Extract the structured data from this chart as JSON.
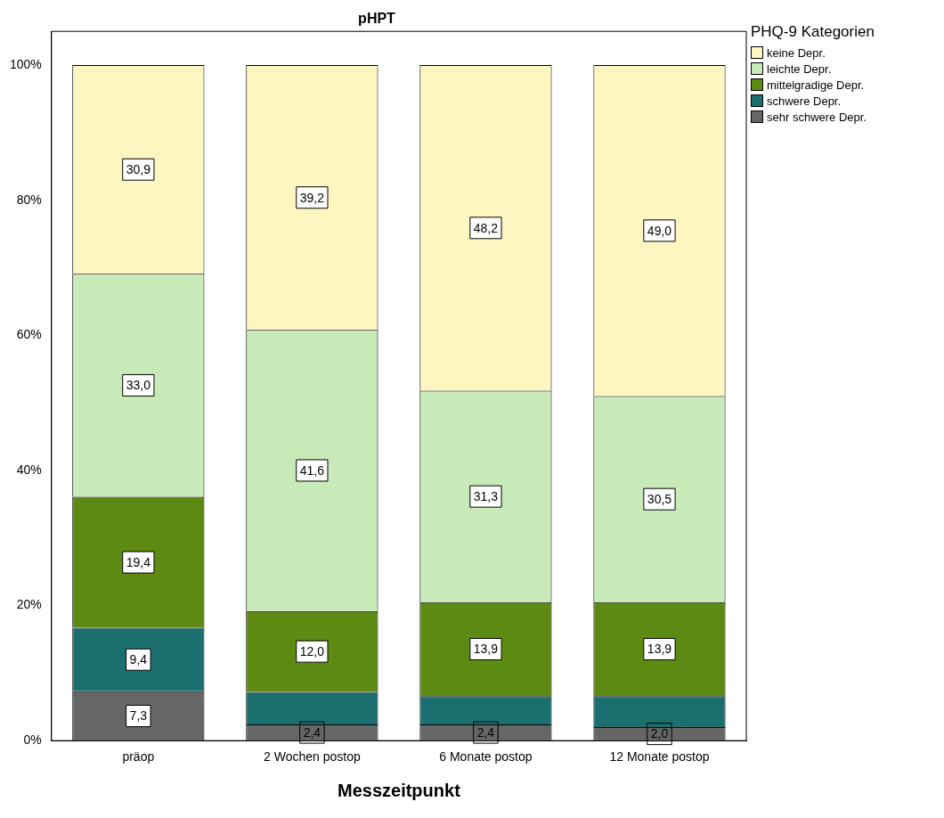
{
  "chart_data": {
    "type": "bar",
    "title": "pHPT",
    "xlabel": "Messzeitpunkt",
    "legend_title": "PHQ-9 Kategorien",
    "categories": [
      "präop",
      "2 Wochen postop",
      "6 Monate postop",
      "12 Monate postop"
    ],
    "stacked": true,
    "ylim": [
      0,
      105
    ],
    "yticks": [
      {
        "value": 0,
        "label": "0%"
      },
      {
        "value": 20,
        "label": "20%"
      },
      {
        "value": 40,
        "label": "40%"
      },
      {
        "value": 60,
        "label": "60%"
      },
      {
        "value": 80,
        "label": "80%"
      },
      {
        "value": 100,
        "label": "100%"
      }
    ],
    "grid": false,
    "legend": "top right",
    "series": [
      {
        "name": "sehr schwere Depr.",
        "color": "#666666",
        "values": [
          7.3,
          2.4,
          2.4,
          2.0
        ],
        "value_labels": [
          "7,3",
          "2,4",
          "2,4",
          "2,0"
        ]
      },
      {
        "name": "schwere Depr.",
        "color": "#1b6f6f",
        "values": [
          9.4,
          4.8,
          4.2,
          4.6
        ],
        "value_labels": [
          "9,4",
          null,
          null,
          null
        ]
      },
      {
        "name": "mittelgradige Depr.",
        "color": "#5c8a12",
        "values": [
          19.4,
          12.0,
          13.9,
          13.9
        ],
        "value_labels": [
          "19,4",
          "12,0",
          "13,9",
          "13,9"
        ]
      },
      {
        "name": "leichte Depr.",
        "color": "#c8eab8",
        "values": [
          33.0,
          41.6,
          31.3,
          30.5
        ],
        "value_labels": [
          "33,0",
          "41,6",
          "31,3",
          "30,5"
        ]
      },
      {
        "name": "keine Depr.",
        "color": "#fdf6c0",
        "values": [
          30.9,
          39.2,
          48.2,
          49.0
        ],
        "value_labels": [
          "30,9",
          "39,2",
          "48,2",
          "49,0"
        ]
      }
    ]
  }
}
